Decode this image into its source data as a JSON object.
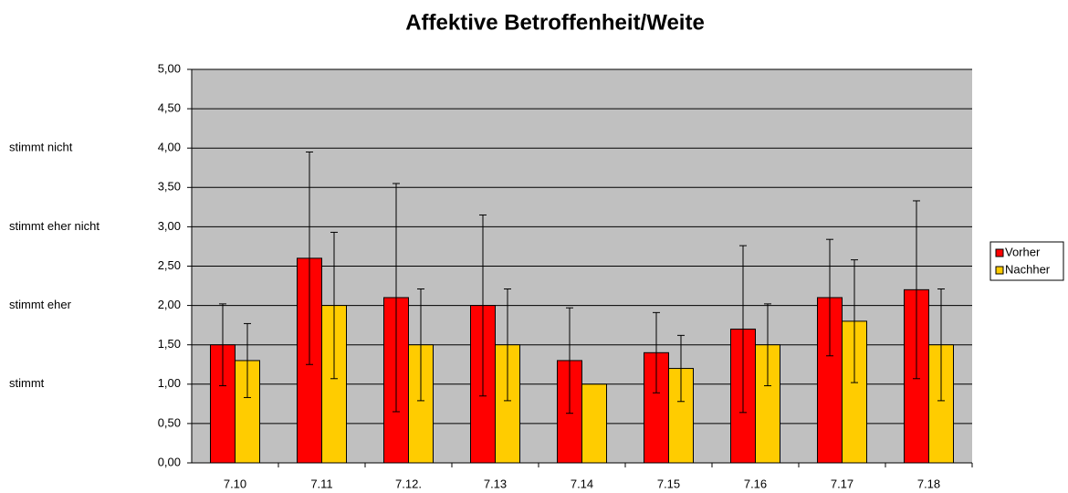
{
  "chart_data": {
    "type": "bar",
    "title": "Affektive Betroffenheit/Weite",
    "categories": [
      "7.10",
      "7.11",
      "7.12.",
      "7.13",
      "7.14",
      "7.15",
      "7.16",
      "7.17",
      "7.18"
    ],
    "series": [
      {
        "name": "Vorher",
        "color": "#ff0000",
        "values": [
          1.5,
          2.6,
          2.1,
          2.0,
          1.3,
          1.4,
          1.7,
          2.1,
          2.2
        ],
        "errors": [
          0.52,
          1.35,
          1.45,
          1.15,
          0.67,
          0.51,
          1.06,
          0.74,
          1.13
        ]
      },
      {
        "name": "Nachher",
        "color": "#ffcc00",
        "values": [
          1.3,
          2.0,
          1.5,
          1.5,
          1.0,
          1.2,
          1.5,
          1.8,
          1.5
        ],
        "errors": [
          0.47,
          0.93,
          0.71,
          0.71,
          null,
          0.42,
          0.52,
          0.78,
          0.71
        ]
      }
    ],
    "ylim": [
      0,
      5
    ],
    "yticks": [
      {
        "value": 0,
        "label": "0,00"
      },
      {
        "value": 0.5,
        "label": "0,50"
      },
      {
        "value": 1,
        "label": "1,00"
      },
      {
        "value": 1.5,
        "label": "1,50"
      },
      {
        "value": 2,
        "label": "2,00"
      },
      {
        "value": 2.5,
        "label": "2,50"
      },
      {
        "value": 3,
        "label": "3,00"
      },
      {
        "value": 3.5,
        "label": "3,50"
      },
      {
        "value": 4,
        "label": "4,00"
      },
      {
        "value": 4.5,
        "label": "4,50"
      },
      {
        "value": 5,
        "label": "5,00"
      }
    ],
    "side_labels": [
      {
        "value": 4,
        "label": "stimmt nicht"
      },
      {
        "value": 3,
        "label": "stimmt eher nicht"
      },
      {
        "value": 2,
        "label": "stimmt eher"
      },
      {
        "value": 1,
        "label": "stimmt"
      }
    ],
    "grid": true,
    "legend": "right",
    "plot_background": "#c0c0c0"
  }
}
